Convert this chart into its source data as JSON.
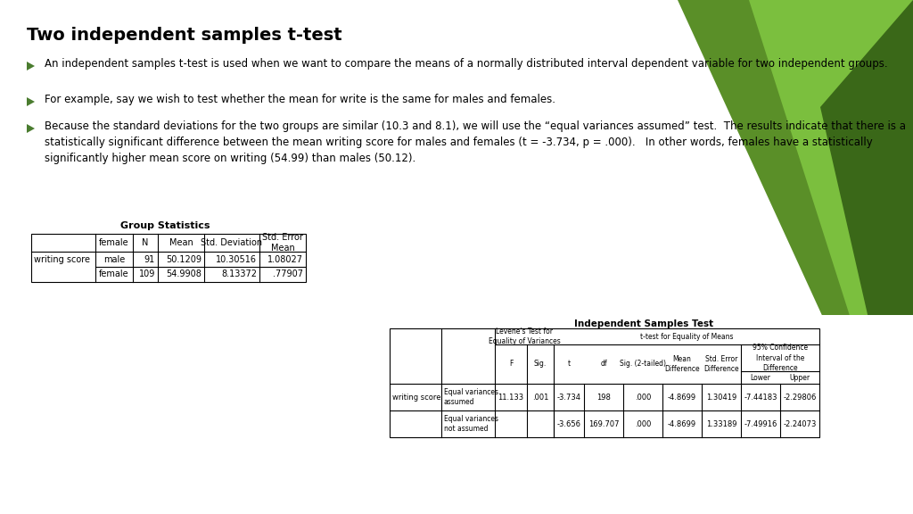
{
  "title": "Two independent samples t-test",
  "bullets": [
    "An independent samples t-test is used when we want to compare the means of a normally distributed interval dependent variable for two independent groups.",
    "For example, say we wish to test whether the mean for write is the same for males and females.",
    "Because the standard deviations for the two groups are similar (10.3 and 8.1), we will use the “equal variances assumed” test.  The results indicate that there is a statistically significant difference between the mean writing score for males and females (t = -3.734, p = .000).   In other words, females have a statistically significantly higher mean score on writing (54.99) than males (50.12)."
  ],
  "bg_color": "#ffffff",
  "title_color": "#000000",
  "bullet_color": "#000000",
  "arrow_color": "#4a7c2f",
  "tri_color1": "#5a8f28",
  "tri_color2": "#7bbf3e",
  "tri_color3": "#3a6818",
  "group_stats_title": "Group Statistics",
  "group_stats_col_headers": [
    "",
    "female",
    "N",
    "Mean",
    "Std. Deviation",
    "Std. Error\nMean"
  ],
  "group_stats_rows": [
    [
      "writing score",
      "male",
      "91",
      "50.1209",
      "10.30516",
      "1.08027"
    ],
    [
      "",
      "female",
      "109",
      "54.9908",
      "8.13372",
      ".77907"
    ]
  ],
  "ind_samples_title": "Independent Samples Test",
  "ind_rows": [
    [
      "writing score",
      "Equal variances\nassumed",
      "11.133",
      ".001",
      "-3.734",
      "198",
      ".000",
      "-4.8699",
      "1.30419",
      "-7.44183",
      "-2.29806"
    ],
    [
      "",
      "Equal variances\nnot assumed",
      "",
      "",
      "-3.656",
      "169.707",
      ".000",
      "-4.8699",
      "1.33189",
      "-7.49916",
      "-2.24073"
    ]
  ]
}
